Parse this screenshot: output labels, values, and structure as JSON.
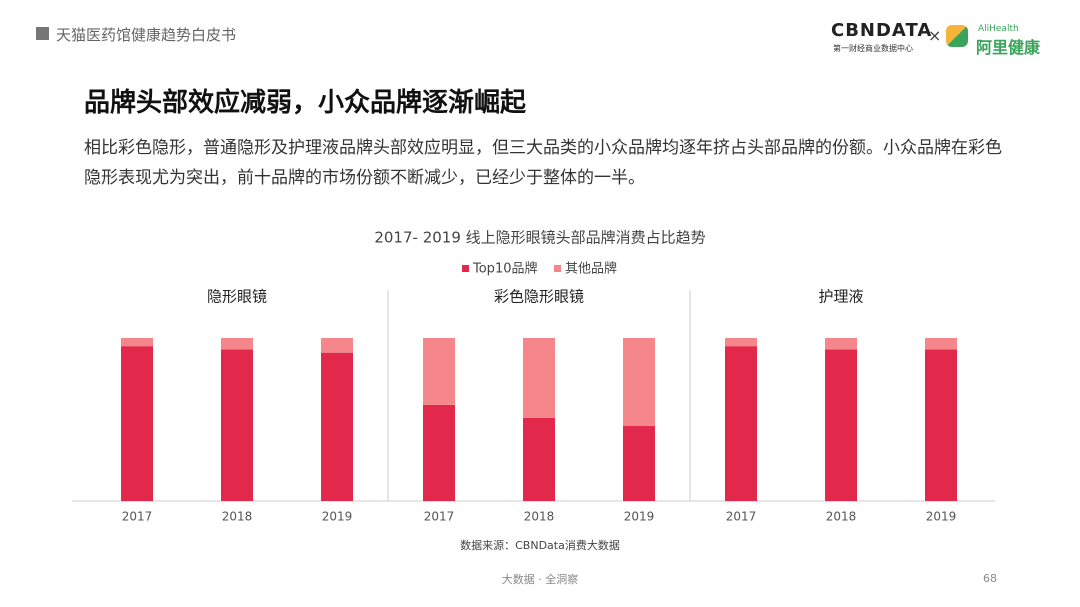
{
  "header": {
    "section": "天猫医药馆健康趋势白皮书",
    "logo_main": "CBNDATA",
    "logo_sub": "第一财经商业数据中心",
    "times": "×",
    "partner_small": "AliHealth",
    "partner": "阿里健康"
  },
  "title": "品牌头部效应减弱，小众品牌逐渐崛起",
  "body": "相比彩色隐形，普通隐形及护理液品牌头部效应明显，但三大品类的小众品牌均逐年挤占头部品牌的份额。小众品牌在彩色隐形表现尤为突出，前十品牌的市场份额不断减少，已经少于整体的一半。",
  "chart_title": "2017- 2019 线上隐形眼镜头部品牌消费占比趋势",
  "chart_data": [
    {
      "type": "bar",
      "stacked": true,
      "title": "隐形眼镜",
      "categories": [
        "2017",
        "2018",
        "2019"
      ],
      "ylim": [
        0,
        100
      ],
      "series": [
        {
          "name": "Top10品牌",
          "color": "#e3294b",
          "values": [
            95,
            93,
            91
          ]
        },
        {
          "name": "其他品牌",
          "color": "#f5878a",
          "values": [
            5,
            7,
            9
          ]
        }
      ]
    },
    {
      "type": "bar",
      "stacked": true,
      "title": "彩色隐形眼镜",
      "categories": [
        "2017",
        "2018",
        "2019"
      ],
      "ylim": [
        0,
        100
      ],
      "series": [
        {
          "name": "Top10品牌",
          "color": "#e3294b",
          "values": [
            59,
            51,
            46
          ]
        },
        {
          "name": "其他品牌",
          "color": "#f5878a",
          "values": [
            41,
            49,
            54
          ]
        }
      ]
    },
    {
      "type": "bar",
      "stacked": true,
      "title": "护理液",
      "categories": [
        "2017",
        "2018",
        "2019"
      ],
      "ylim": [
        0,
        100
      ],
      "series": [
        {
          "name": "Top10品牌",
          "color": "#e3294b",
          "values": [
            95,
            93,
            93
          ]
        },
        {
          "name": "其他品牌",
          "color": "#f5878a",
          "values": [
            5,
            7,
            7
          ]
        }
      ]
    }
  ],
  "source": "数据来源：CBNData消费大数据",
  "footer": "大数据 · 全洞察",
  "page": "68"
}
